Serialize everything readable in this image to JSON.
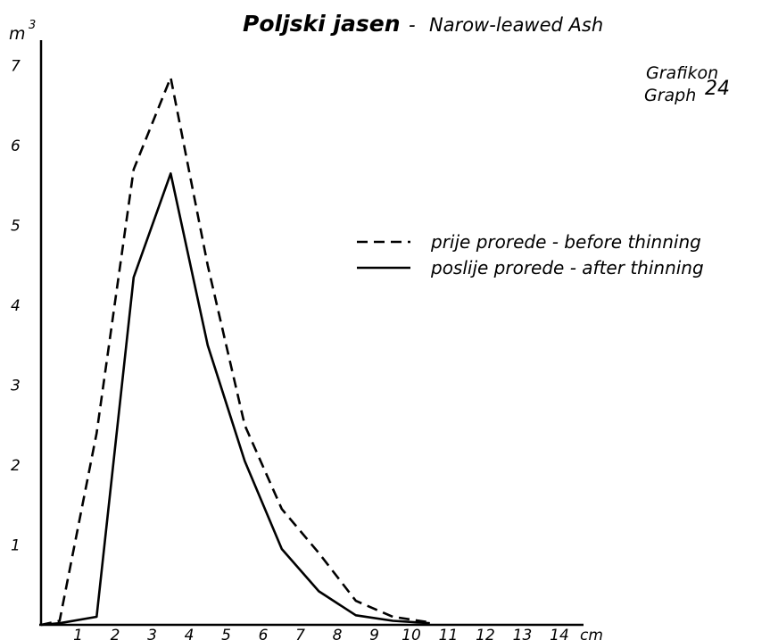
{
  "chart_data": {
    "type": "line",
    "title": "Poljski jasen",
    "subtitle": "Narow-leawed Ash",
    "title_separator": "-",
    "graph_label_line1": "Grafikon",
    "graph_label_line2": "Graph",
    "graph_number": "24",
    "ylabel": "m",
    "ylabel_superscript": "3",
    "xunit": "cm",
    "xlim": [
      0,
      14
    ],
    "ylim": [
      0,
      7
    ],
    "x_ticks": [
      "1",
      "2",
      "3",
      "4",
      "5",
      "6",
      "7",
      "8",
      "9",
      "10",
      "11",
      "12",
      "13",
      "14"
    ],
    "y_ticks": [
      "1",
      "2",
      "3",
      "4",
      "5",
      "6",
      "7"
    ],
    "grid": false,
    "legend_position": "right",
    "series": [
      {
        "name": "prije prorede - before thinning",
        "style": "dashed",
        "x": [
          0,
          0.5,
          1.5,
          2.5,
          3.5,
          4.5,
          5.5,
          6.5,
          7.5,
          8.5,
          9.5,
          10.5
        ],
        "y": [
          0,
          0.05,
          2.4,
          5.7,
          6.85,
          4.5,
          2.5,
          1.45,
          0.9,
          0.3,
          0.1,
          0.03
        ]
      },
      {
        "name": "poslije prorede - after thinning",
        "style": "solid",
        "x": [
          0,
          0.5,
          1.5,
          2.5,
          3.5,
          4.5,
          5.5,
          6.5,
          7.5,
          8.5,
          9.5,
          10.5
        ],
        "y": [
          0,
          0.02,
          0.1,
          4.35,
          5.65,
          3.5,
          2.05,
          0.95,
          0.42,
          0.12,
          0.05,
          0.02
        ]
      }
    ]
  },
  "colors": {
    "ink": "#000000",
    "background": "#ffffff"
  }
}
